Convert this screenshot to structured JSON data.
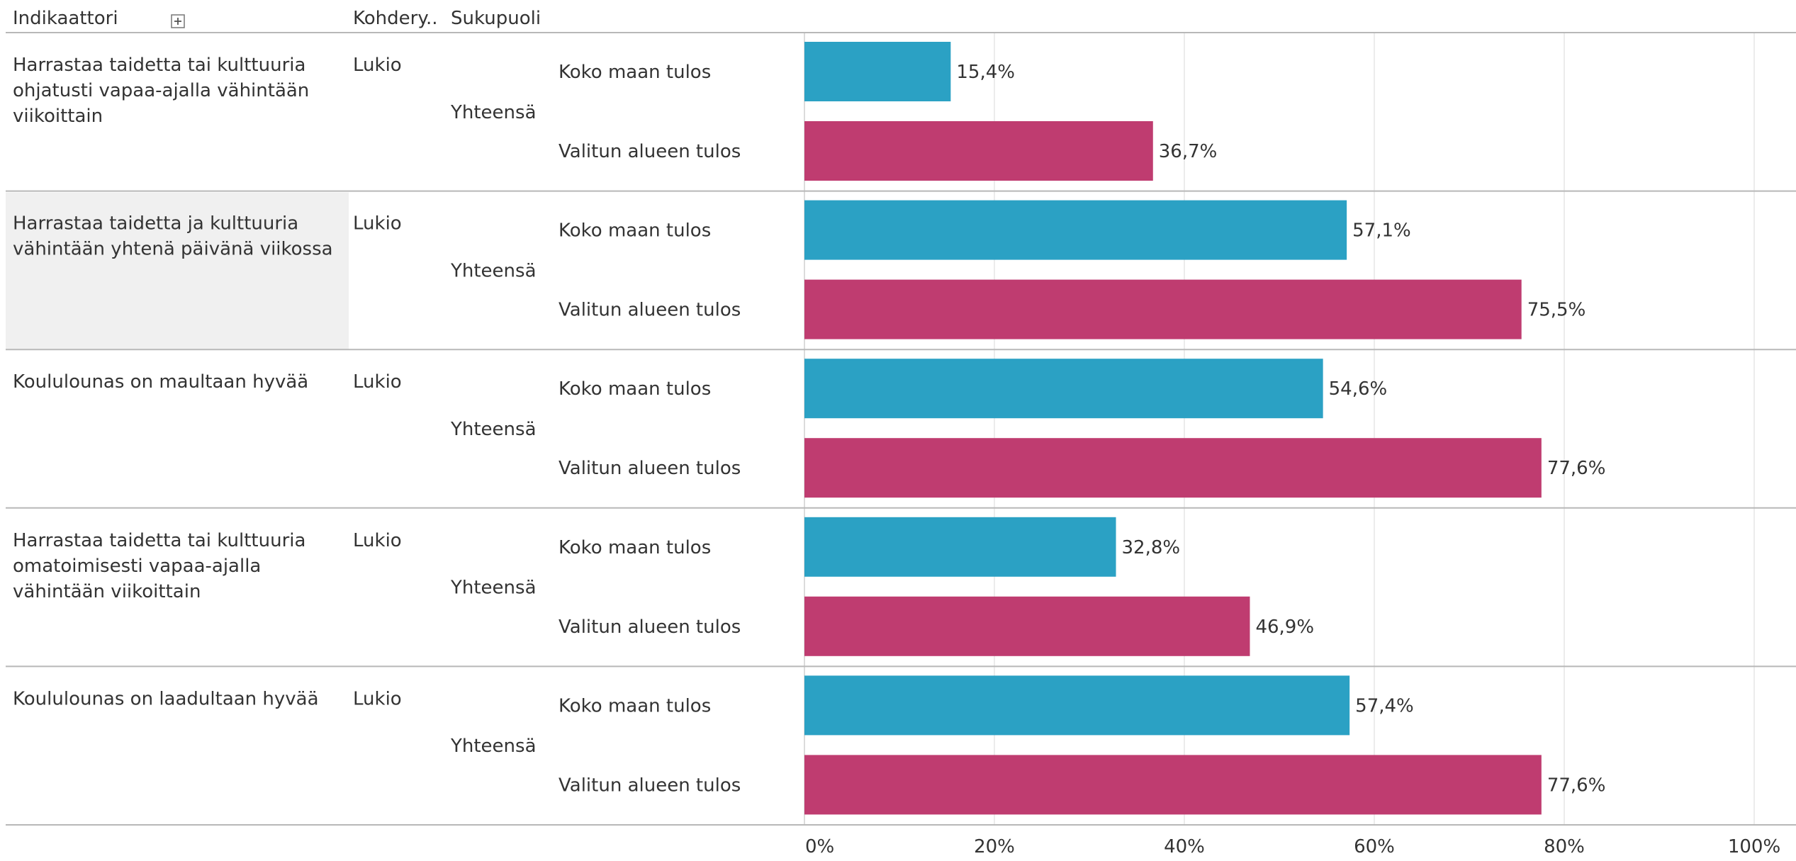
{
  "header": {
    "indicator_label": "Indikaattori",
    "target_group_label": "Kohdery..",
    "gender_label": "Sukupuoli",
    "expand_icon": "plus-box-icon"
  },
  "colors": {
    "national": "#2BA1C4",
    "selected_area": "#BF3C70",
    "row_highlight": "#F0F0F0",
    "divider": "#B8B8B8",
    "gridline": "#E6E6E6",
    "text": "#333333"
  },
  "chart_data": {
    "type": "bar",
    "orientation": "horizontal",
    "xlim": [
      0,
      100
    ],
    "x_ticks": [
      "0%",
      "20%",
      "40%",
      "60%",
      "80%",
      "100%"
    ],
    "grid": true,
    "series_names": [
      "Koko maan tulos",
      "Valitun alueen tulos"
    ],
    "rows": [
      {
        "indicator": "Harrastaa taidetta tai kulttuuria ohjatusti vapaa-ajalla vähintään viikoittain",
        "indicator_lines": [
          "Harrastaa taidetta tai kulttuuria",
          "ohjatusti vapaa-ajalla vähintään",
          "viikoittain"
        ],
        "target_group": "Lukio",
        "gender": "Yhteensä",
        "values": [
          15.4,
          36.7
        ],
        "labels": [
          "15,4%",
          "36,7%"
        ]
      },
      {
        "indicator": "Harrastaa taidetta ja kulttuuria vähintään yhtenä päivänä viikossa",
        "indicator_lines": [
          "Harrastaa taidetta ja kulttuuria",
          "vähintään yhtenä päivänä viikossa"
        ],
        "target_group": "Lukio",
        "gender": "Yhteensä",
        "values": [
          57.1,
          75.5
        ],
        "labels": [
          "57,1%",
          "75,5%"
        ],
        "highlighted": true
      },
      {
        "indicator": "Koululounas on maultaan hyvää",
        "indicator_lines": [
          "Koululounas on maultaan hyvää"
        ],
        "target_group": "Lukio",
        "gender": "Yhteensä",
        "values": [
          54.6,
          77.6
        ],
        "labels": [
          "54,6%",
          "77,6%"
        ]
      },
      {
        "indicator": "Harrastaa taidetta tai kulttuuria omatoimisesti vapaa-ajalla vähintään viikoittain",
        "indicator_lines": [
          "Harrastaa taidetta tai kulttuuria",
          "omatoimisesti vapaa-ajalla",
          "vähintään viikoittain"
        ],
        "target_group": "Lukio",
        "gender": "Yhteensä",
        "values": [
          32.8,
          46.9
        ],
        "labels": [
          "32,8%",
          "46,9%"
        ]
      },
      {
        "indicator": "Koululounas on laadultaan hyvää",
        "indicator_lines": [
          "Koululounas on laadultaan hyvää"
        ],
        "target_group": "Lukio",
        "gender": "Yhteensä",
        "values": [
          57.4,
          77.6
        ],
        "labels": [
          "57,4%",
          "77,6%"
        ]
      }
    ]
  }
}
